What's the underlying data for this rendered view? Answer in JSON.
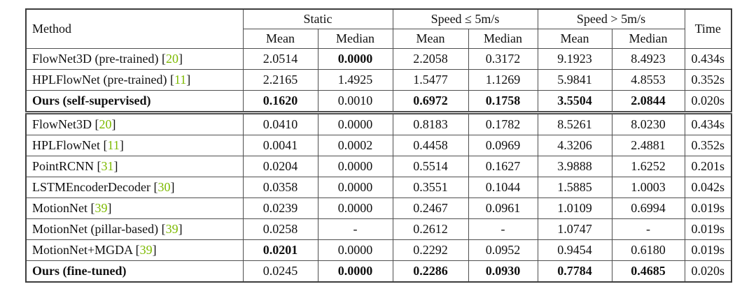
{
  "table": {
    "citation_color": "#7dba00",
    "header": {
      "method": "Method",
      "time": "Time",
      "groups": [
        {
          "label": "Static"
        },
        {
          "label": "Speed ≤ 5m/s"
        },
        {
          "label": "Speed > 5m/s"
        }
      ],
      "sub": [
        "Mean",
        "Median"
      ]
    },
    "groups": [
      {
        "rows": [
          {
            "method": "FlowNet3D (pre-trained)",
            "cite": "20",
            "bold_method": false,
            "cells": [
              {
                "v": "2.0514",
                "b": false
              },
              {
                "v": "0.0000",
                "b": true
              },
              {
                "v": "2.2058",
                "b": false
              },
              {
                "v": "0.3172",
                "b": false
              },
              {
                "v": "9.1923",
                "b": false
              },
              {
                "v": "8.4923",
                "b": false
              }
            ],
            "time": "0.434s"
          },
          {
            "method": "HPLFlowNet (pre-trained)",
            "cite": "11",
            "bold_method": false,
            "cells": [
              {
                "v": "2.2165",
                "b": false
              },
              {
                "v": "1.4925",
                "b": false
              },
              {
                "v": "1.5477",
                "b": false
              },
              {
                "v": "1.1269",
                "b": false
              },
              {
                "v": "5.9841",
                "b": false
              },
              {
                "v": "4.8553",
                "b": false
              }
            ],
            "time": "0.352s"
          },
          {
            "method": "Ours (self-supervised)",
            "cite": "",
            "bold_method": true,
            "cells": [
              {
                "v": "0.1620",
                "b": true
              },
              {
                "v": "0.0010",
                "b": false
              },
              {
                "v": "0.6972",
                "b": true
              },
              {
                "v": "0.1758",
                "b": true
              },
              {
                "v": "3.5504",
                "b": true
              },
              {
                "v": "2.0844",
                "b": true
              }
            ],
            "time": "0.020s"
          }
        ]
      },
      {
        "rows": [
          {
            "method": "FlowNet3D",
            "cite": "20",
            "bold_method": false,
            "cells": [
              {
                "v": "0.0410",
                "b": false
              },
              {
                "v": "0.0000",
                "b": false
              },
              {
                "v": "0.8183",
                "b": false
              },
              {
                "v": "0.1782",
                "b": false
              },
              {
                "v": "8.5261",
                "b": false
              },
              {
                "v": "8.0230",
                "b": false
              }
            ],
            "time": "0.434s"
          },
          {
            "method": "HPLFlowNet",
            "cite": "11",
            "bold_method": false,
            "cells": [
              {
                "v": "0.0041",
                "b": false
              },
              {
                "v": "0.0002",
                "b": false
              },
              {
                "v": "0.4458",
                "b": false
              },
              {
                "v": "0.0969",
                "b": false
              },
              {
                "v": "4.3206",
                "b": false
              },
              {
                "v": "2.4881",
                "b": false
              }
            ],
            "time": "0.352s"
          },
          {
            "method": "PointRCNN",
            "cite": "31",
            "bold_method": false,
            "cells": [
              {
                "v": "0.0204",
                "b": false
              },
              {
                "v": "0.0000",
                "b": false
              },
              {
                "v": "0.5514",
                "b": false
              },
              {
                "v": "0.1627",
                "b": false
              },
              {
                "v": "3.9888",
                "b": false
              },
              {
                "v": "1.6252",
                "b": false
              }
            ],
            "time": "0.201s"
          },
          {
            "method": "LSTMEncoderDecoder",
            "cite": "30",
            "bold_method": false,
            "cells": [
              {
                "v": "0.0358",
                "b": false
              },
              {
                "v": "0.0000",
                "b": false
              },
              {
                "v": "0.3551",
                "b": false
              },
              {
                "v": "0.1044",
                "b": false
              },
              {
                "v": "1.5885",
                "b": false
              },
              {
                "v": "1.0003",
                "b": false
              }
            ],
            "time": "0.042s"
          },
          {
            "method": "MotionNet",
            "cite": "39",
            "bold_method": false,
            "cells": [
              {
                "v": "0.0239",
                "b": false
              },
              {
                "v": "0.0000",
                "b": false
              },
              {
                "v": "0.2467",
                "b": false
              },
              {
                "v": "0.0961",
                "b": false
              },
              {
                "v": "1.0109",
                "b": false
              },
              {
                "v": "0.6994",
                "b": false
              }
            ],
            "time": "0.019s"
          },
          {
            "method": "MotionNet (pillar-based)",
            "cite": "39",
            "bold_method": false,
            "cells": [
              {
                "v": "0.0258",
                "b": false
              },
              {
                "v": "-",
                "b": false
              },
              {
                "v": "0.2612",
                "b": false
              },
              {
                "v": "-",
                "b": false
              },
              {
                "v": "1.0747",
                "b": false
              },
              {
                "v": "-",
                "b": false
              }
            ],
            "time": "0.019s"
          },
          {
            "method": "MotionNet+MGDA",
            "cite": "39",
            "bold_method": false,
            "cells": [
              {
                "v": "0.0201",
                "b": true
              },
              {
                "v": "0.0000",
                "b": false
              },
              {
                "v": "0.2292",
                "b": false
              },
              {
                "v": "0.0952",
                "b": false
              },
              {
                "v": "0.9454",
                "b": false
              },
              {
                "v": "0.6180",
                "b": false
              }
            ],
            "time": "0.019s"
          },
          {
            "method": "Ours (fine-tuned)",
            "cite": "",
            "bold_method": true,
            "cells": [
              {
                "v": "0.0245",
                "b": false
              },
              {
                "v": "0.0000",
                "b": true
              },
              {
                "v": "0.2286",
                "b": true
              },
              {
                "v": "0.0930",
                "b": true
              },
              {
                "v": "0.7784",
                "b": true
              },
              {
                "v": "0.4685",
                "b": true
              }
            ],
            "time": "0.020s"
          }
        ]
      }
    ]
  }
}
